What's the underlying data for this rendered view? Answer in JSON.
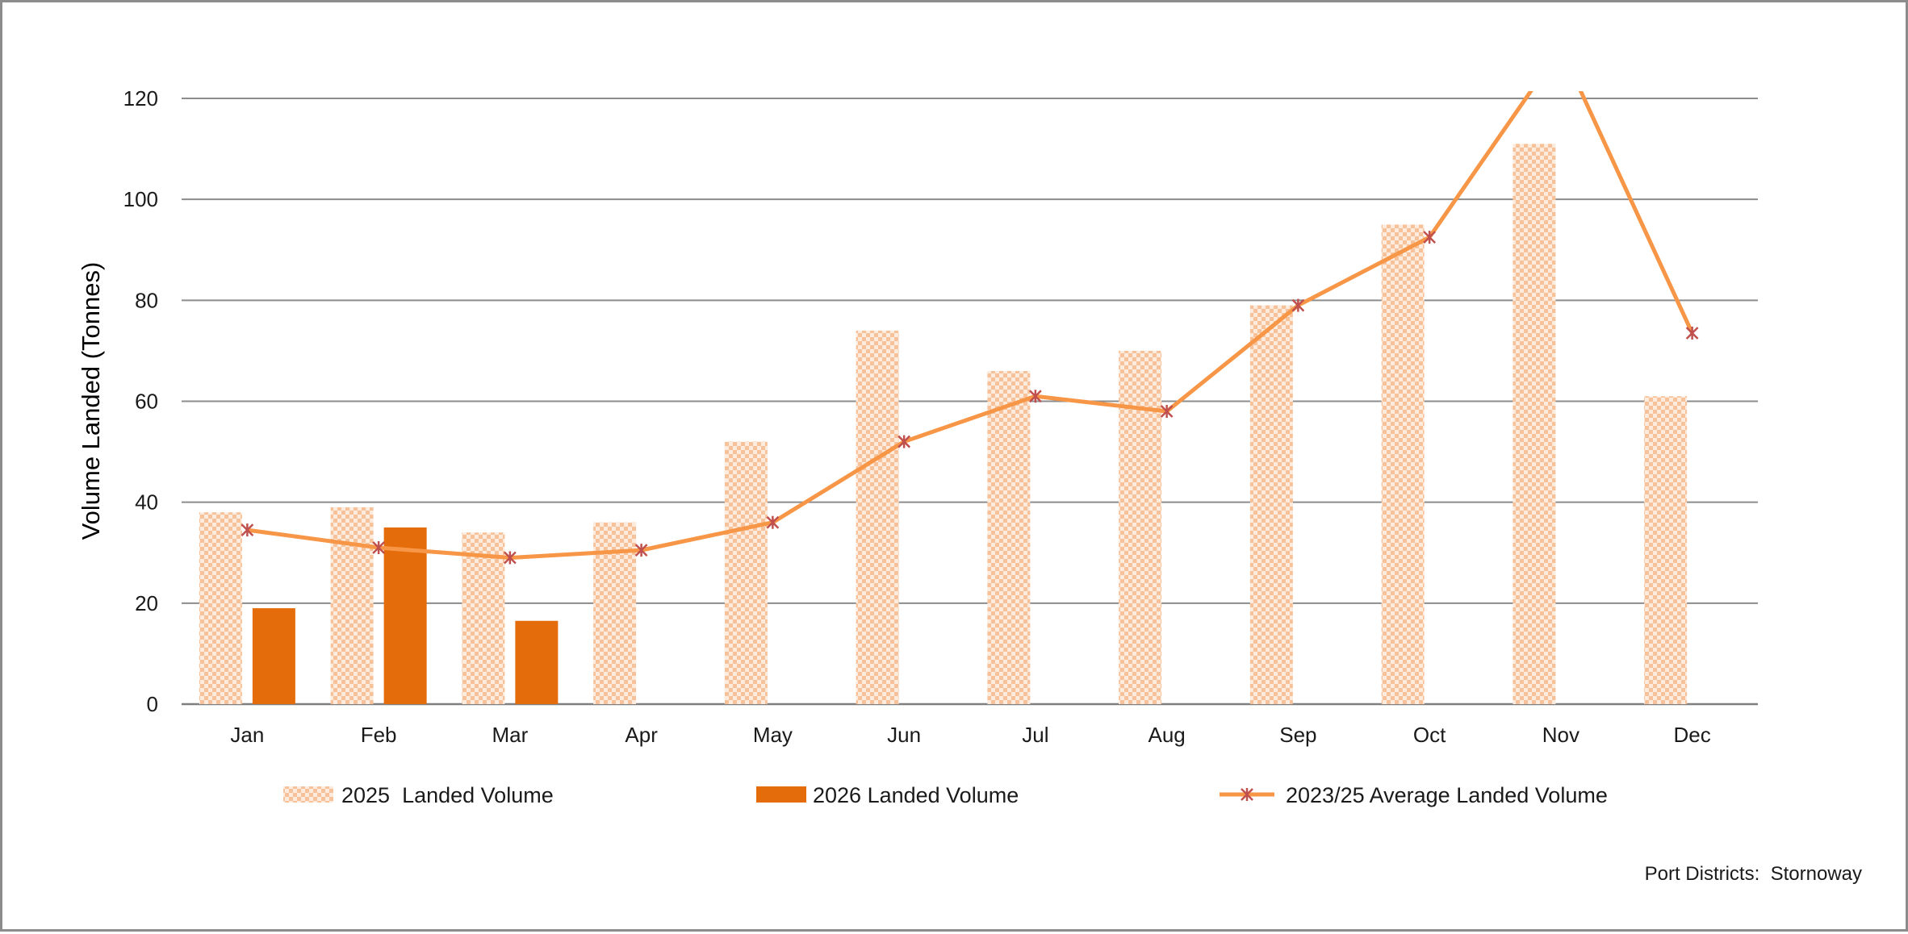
{
  "chart_data": {
    "type": "bar",
    "categories": [
      "Jan",
      "Feb",
      "Mar",
      "Apr",
      "May",
      "Jun",
      "Jul",
      "Aug",
      "Sep",
      "Oct",
      "Nov",
      "Dec"
    ],
    "series": [
      {
        "name": "2025  Landed Volume",
        "kind": "bar",
        "pattern": "checkerboard",
        "color": "#F9C9A4",
        "values": [
          38,
          39,
          34,
          36,
          52,
          74,
          66,
          70,
          79,
          95,
          111,
          61
        ]
      },
      {
        "name": "2026 Landed Volume",
        "kind": "bar",
        "color": "#E46C0A",
        "values": [
          19,
          35,
          16.5,
          null,
          null,
          null,
          null,
          null,
          null,
          null,
          null,
          null
        ]
      },
      {
        "name": "2023/25 Average Landed Volume",
        "kind": "line",
        "marker": "star",
        "color": "#F79646",
        "marker_color": "#C0504D",
        "values": [
          34.5,
          31,
          29,
          30.5,
          36,
          52,
          61,
          58,
          79,
          92.5,
          130,
          73.5
        ]
      }
    ],
    "ylabel": "Volume Landed (Tonnes)",
    "xlabel": "",
    "ylim": [
      0,
      120
    ],
    "yticks": [
      0,
      20,
      40,
      60,
      80,
      100,
      120
    ],
    "grid": true,
    "legend_position": "bottom"
  },
  "footnote": "Port Districts:  Stornoway"
}
